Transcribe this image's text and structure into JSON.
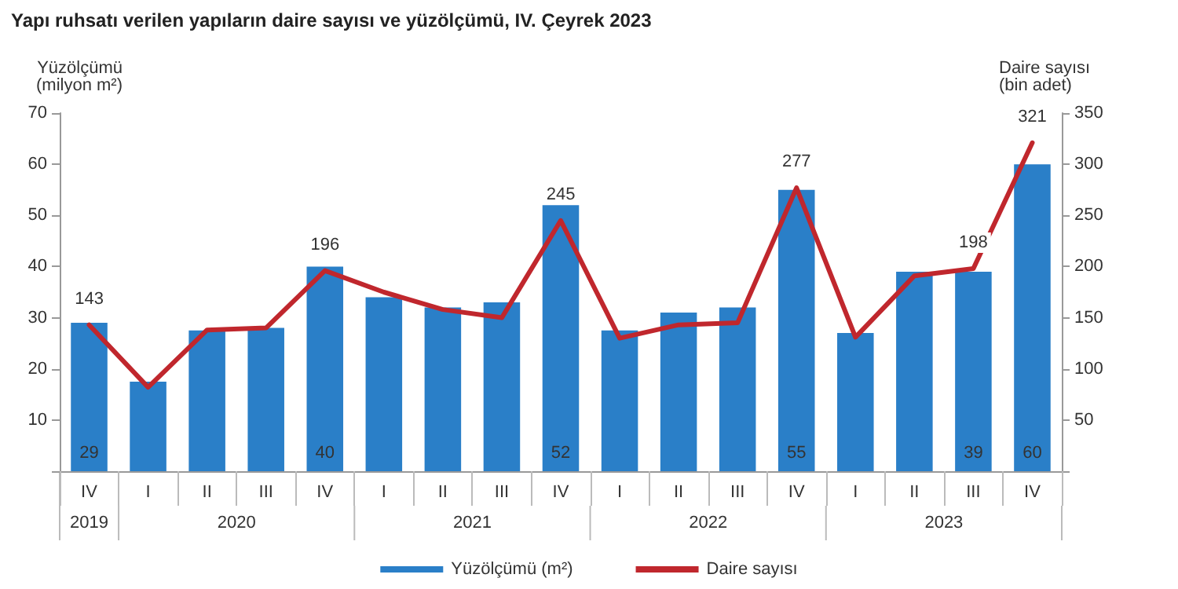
{
  "chart_data": {
    "type": "bar",
    "title": "Yapı ruhsatı verilen yapıların daire sayısı ve yüzölçümü, IV. Çeyrek 2023",
    "categories": [
      "IV",
      "I",
      "II",
      "III",
      "IV",
      "I",
      "II",
      "III",
      "IV",
      "I",
      "II",
      "III",
      "IV",
      "I",
      "II",
      "III",
      "IV"
    ],
    "annotations": [
      "2019",
      "2020",
      "2021",
      "2022",
      "2023"
    ],
    "ylabel": "Yüzölçümü\n(milyon m²)",
    "y2label": "Daire sayısı\n(bin adet)",
    "ylim": [
      0,
      70
    ],
    "yticks": [
      {
        "value": 0,
        "label": null
      },
      10,
      20,
      30,
      40,
      50,
      60,
      70
    ],
    "y2lim": [
      0,
      350
    ],
    "y2ticks": [
      {
        "value": 0,
        "label": null
      },
      50,
      100,
      150,
      200,
      250,
      300,
      350
    ],
    "series": [
      {
        "name": "Yüzölçümü (m²)",
        "color": "#2a7fc8",
        "values": [
          29,
          17.5,
          27.5,
          28,
          40,
          34,
          32,
          33,
          52,
          27.5,
          31,
          32,
          55,
          27,
          39,
          39,
          60
        ],
        "value_labels": [
          "29",
          null,
          null,
          null,
          "40",
          null,
          null,
          null,
          "52",
          null,
          null,
          null,
          "55",
          null,
          null,
          "39",
          "60"
        ]
      },
      {
        "name": "Daire sayısı",
        "type": "line",
        "axis": "y2",
        "color": "#c0272d",
        "values": [
          143,
          82,
          138,
          140,
          196,
          175,
          158,
          150,
          245,
          130,
          143,
          145,
          277,
          131,
          191,
          198,
          321
        ],
        "value_labels": [
          "143",
          null,
          null,
          null,
          "196",
          null,
          null,
          null,
          "245",
          null,
          null,
          null,
          "277",
          null,
          null,
          "198",
          "321"
        ]
      }
    ],
    "legend": "bottom",
    "grid": false,
    "marker": "none",
    "line_style": "solid"
  }
}
